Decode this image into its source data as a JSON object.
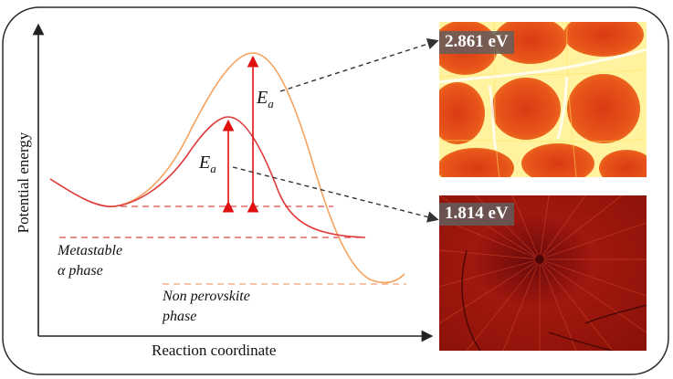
{
  "axes": {
    "y_label": "Potential energy",
    "x_label": "Reaction coordinate"
  },
  "curves": {
    "upper_color": "#f4a460",
    "lower_color": "#e03a3a",
    "arrow_color": "#e01010"
  },
  "labels": {
    "activation_energy_symbol": "E",
    "activation_energy_subscript": "a",
    "metastable_line1": "Metastable",
    "metastable_line2": "α phase",
    "non_perovskite_line1": "Non perovskite",
    "non_perovskite_line2": "phase"
  },
  "photos": {
    "top_energy": "2.861 eV",
    "bottom_energy": "1.814 eV"
  }
}
